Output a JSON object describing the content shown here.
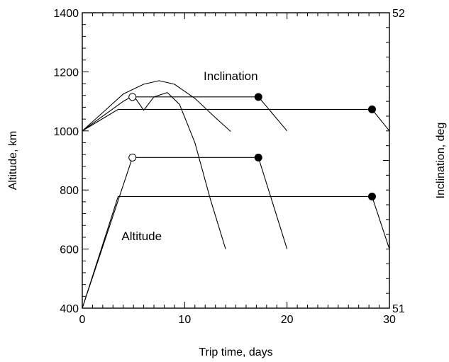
{
  "chart_data": {
    "type": "line",
    "title": "",
    "xlabel": "Trip time, days",
    "ylabel": "Altitude, km",
    "y2label": "Inclination, deg",
    "xlim": [
      0,
      30
    ],
    "ylim": [
      400,
      1400
    ],
    "y2lim": [
      51,
      52
    ],
    "x_ticks": [
      0,
      10,
      20,
      30
    ],
    "y_ticks": [
      400,
      600,
      800,
      1000,
      1200,
      1400
    ],
    "y2_ticks": [
      51,
      52
    ],
    "x_tick_labels": [
      "0",
      "10",
      "20",
      "30"
    ],
    "y_tick_labels": [
      "400",
      "600",
      "800",
      "1000",
      "1200",
      "1400"
    ],
    "y2_tick_labels": [
      "51",
      "52"
    ],
    "grid": false,
    "annotations": [
      {
        "text": "Inclination",
        "x": 14.5,
        "y": 1172
      },
      {
        "text": "Altitude",
        "x": 5.8,
        "y": 630
      }
    ],
    "series": [
      {
        "group": "inclination",
        "kind": "curve",
        "x": [
          0,
          2,
          4,
          6,
          7.5,
          9,
          11,
          13,
          14.5
        ],
        "y": [
          1000,
          1062,
          1125,
          1158,
          1170,
          1158,
          1110,
          1045,
          998
        ]
      },
      {
        "group": "inclination",
        "kind": "curve",
        "x": [
          0,
          2,
          4,
          5,
          6,
          7,
          8.3,
          9.5,
          11,
          12.5,
          14
        ],
        "y": [
          1000,
          1050,
          1100,
          1120,
          1070,
          1115,
          1130,
          1090,
          960,
          770,
          600
        ]
      },
      {
        "group": "inclination",
        "kind": "transfer",
        "x": [
          4.9,
          17.2,
          20
        ],
        "y": [
          1115,
          1115,
          1000
        ]
      },
      {
        "group": "inclination",
        "kind": "transfer",
        "x": [
          0,
          3.5,
          28.3,
          30
        ],
        "y": [
          1000,
          1073,
          1073,
          1000
        ]
      },
      {
        "group": "altitude",
        "kind": "transfer",
        "x": [
          0,
          4.9,
          17.2,
          20
        ],
        "y": [
          400,
          910,
          910,
          600
        ]
      },
      {
        "group": "altitude",
        "kind": "transfer",
        "x": [
          0,
          3.5,
          28.3,
          30
        ],
        "y": [
          400,
          778,
          778,
          600
        ]
      }
    ],
    "markers": [
      {
        "x": 4.9,
        "y": 1115,
        "fill": "open"
      },
      {
        "x": 17.2,
        "y": 1115,
        "fill": "filled"
      },
      {
        "x": 28.3,
        "y": 1073,
        "fill": "filled"
      },
      {
        "x": 4.9,
        "y": 910,
        "fill": "open"
      },
      {
        "x": 17.2,
        "y": 910,
        "fill": "filled"
      },
      {
        "x": 28.3,
        "y": 778,
        "fill": "filled"
      }
    ]
  }
}
